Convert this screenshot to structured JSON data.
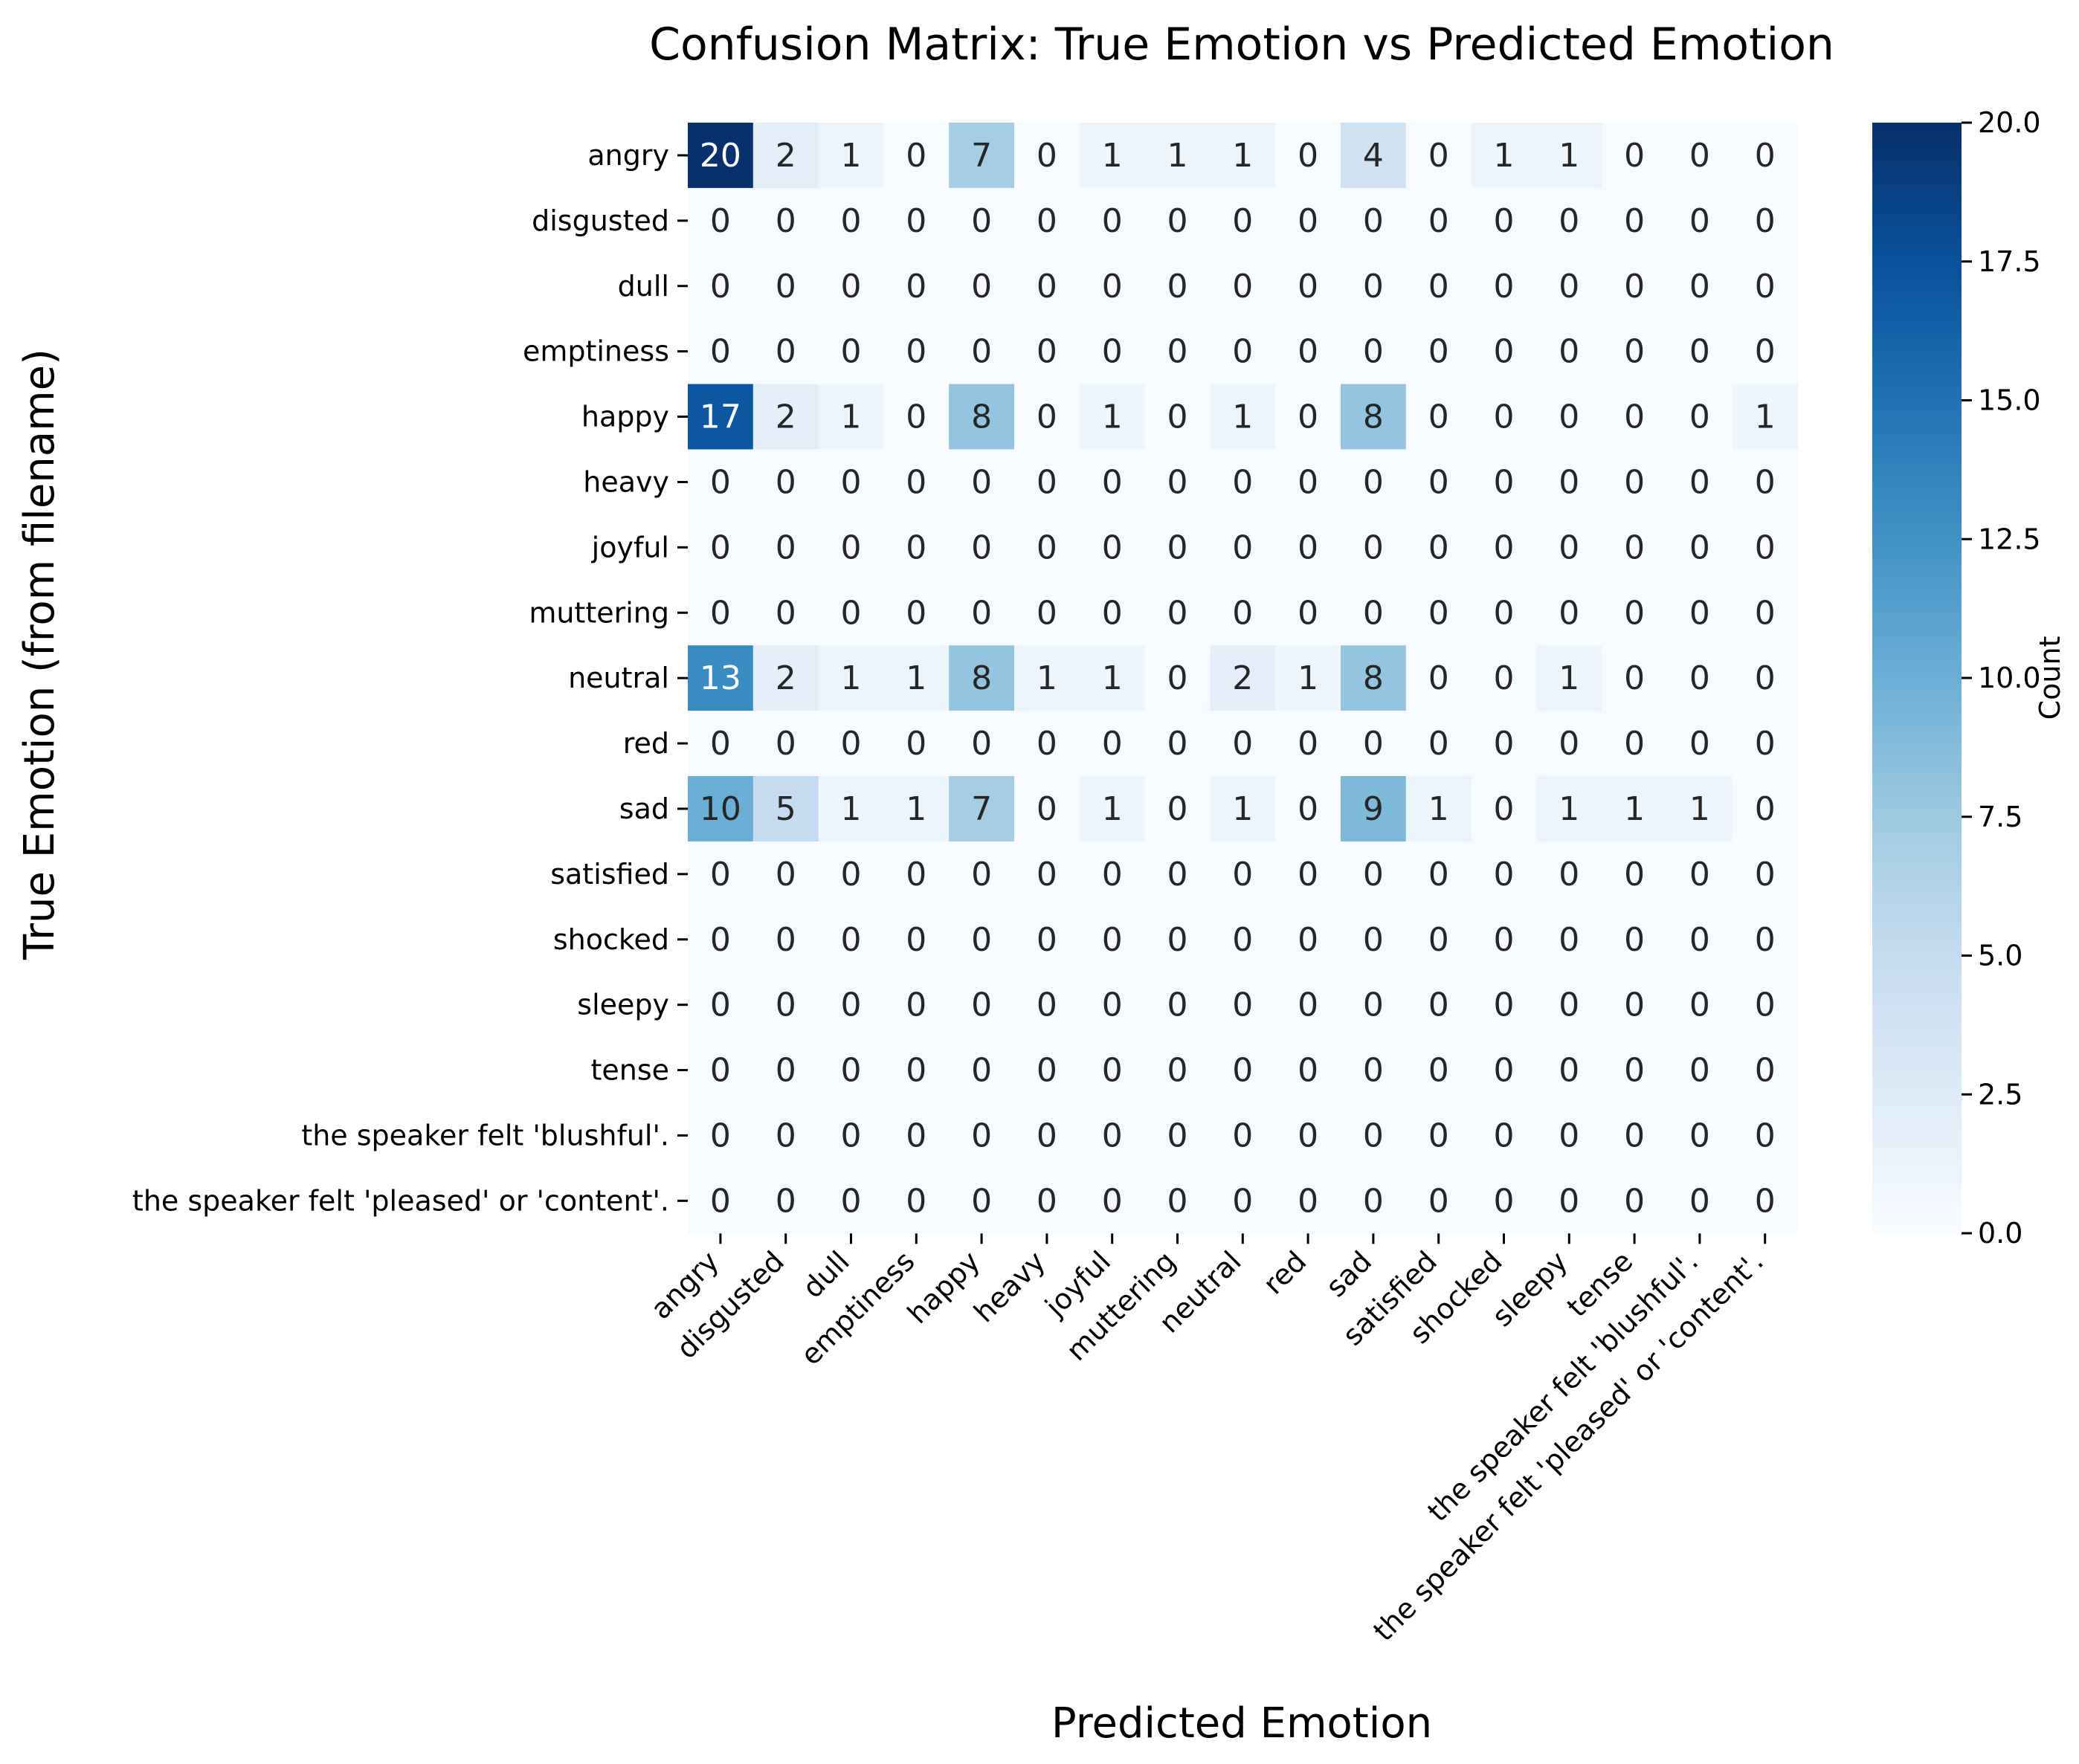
{
  "chart_data": {
    "type": "heatmap",
    "title": "Confusion Matrix: True Emotion vs Predicted Emotion",
    "xlabel": "Predicted Emotion",
    "ylabel": "True Emotion (from filename)",
    "colorbar_label": "Count",
    "colormap": "Blues",
    "vmin": 0,
    "vmax": 20,
    "colorbar_ticks": [
      "0.0",
      "2.5",
      "5.0",
      "7.5",
      "10.0",
      "12.5",
      "15.0",
      "17.5",
      "20.0"
    ],
    "rows": [
      "angry",
      "disgusted",
      "dull",
      "emptiness",
      "happy",
      "heavy",
      "joyful",
      "muttering",
      "neutral",
      "red",
      "sad",
      "satisfied",
      "shocked",
      "sleepy",
      "tense",
      "the speaker felt 'blushful'.",
      "the speaker felt 'pleased' or 'content'."
    ],
    "columns": [
      "angry",
      "disgusted",
      "dull",
      "emptiness",
      "happy",
      "heavy",
      "joyful",
      "muttering",
      "neutral",
      "red",
      "sad",
      "satisfied",
      "shocked",
      "sleepy",
      "tense",
      "the speaker felt 'blushful'.",
      "the speaker felt 'pleased' or 'content'."
    ],
    "values": [
      [
        20,
        2,
        1,
        0,
        7,
        0,
        1,
        1,
        1,
        0,
        4,
        0,
        1,
        1,
        0,
        0,
        0
      ],
      [
        0,
        0,
        0,
        0,
        0,
        0,
        0,
        0,
        0,
        0,
        0,
        0,
        0,
        0,
        0,
        0,
        0
      ],
      [
        0,
        0,
        0,
        0,
        0,
        0,
        0,
        0,
        0,
        0,
        0,
        0,
        0,
        0,
        0,
        0,
        0
      ],
      [
        0,
        0,
        0,
        0,
        0,
        0,
        0,
        0,
        0,
        0,
        0,
        0,
        0,
        0,
        0,
        0,
        0
      ],
      [
        17,
        2,
        1,
        0,
        8,
        0,
        1,
        0,
        1,
        0,
        8,
        0,
        0,
        0,
        0,
        0,
        1
      ],
      [
        0,
        0,
        0,
        0,
        0,
        0,
        0,
        0,
        0,
        0,
        0,
        0,
        0,
        0,
        0,
        0,
        0
      ],
      [
        0,
        0,
        0,
        0,
        0,
        0,
        0,
        0,
        0,
        0,
        0,
        0,
        0,
        0,
        0,
        0,
        0
      ],
      [
        0,
        0,
        0,
        0,
        0,
        0,
        0,
        0,
        0,
        0,
        0,
        0,
        0,
        0,
        0,
        0,
        0
      ],
      [
        13,
        2,
        1,
        1,
        8,
        1,
        1,
        0,
        2,
        1,
        8,
        0,
        0,
        1,
        0,
        0,
        0
      ],
      [
        0,
        0,
        0,
        0,
        0,
        0,
        0,
        0,
        0,
        0,
        0,
        0,
        0,
        0,
        0,
        0,
        0
      ],
      [
        10,
        5,
        1,
        1,
        7,
        0,
        1,
        0,
        1,
        0,
        9,
        1,
        0,
        1,
        1,
        1,
        0
      ],
      [
        0,
        0,
        0,
        0,
        0,
        0,
        0,
        0,
        0,
        0,
        0,
        0,
        0,
        0,
        0,
        0,
        0
      ],
      [
        0,
        0,
        0,
        0,
        0,
        0,
        0,
        0,
        0,
        0,
        0,
        0,
        0,
        0,
        0,
        0,
        0
      ],
      [
        0,
        0,
        0,
        0,
        0,
        0,
        0,
        0,
        0,
        0,
        0,
        0,
        0,
        0,
        0,
        0,
        0
      ],
      [
        0,
        0,
        0,
        0,
        0,
        0,
        0,
        0,
        0,
        0,
        0,
        0,
        0,
        0,
        0,
        0,
        0
      ],
      [
        0,
        0,
        0,
        0,
        0,
        0,
        0,
        0,
        0,
        0,
        0,
        0,
        0,
        0,
        0,
        0,
        0
      ],
      [
        0,
        0,
        0,
        0,
        0,
        0,
        0,
        0,
        0,
        0,
        0,
        0,
        0,
        0,
        0,
        0,
        0
      ]
    ]
  }
}
